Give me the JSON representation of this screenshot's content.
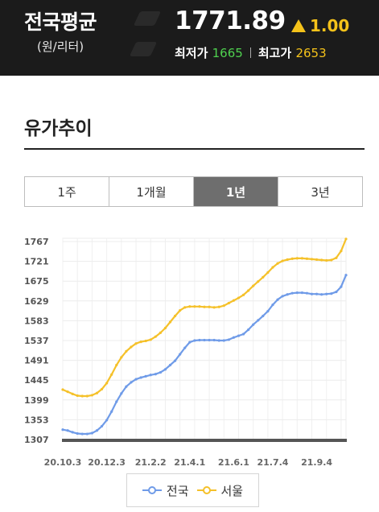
{
  "header": {
    "title": "전국평균",
    "unit": "(원/리터)",
    "price": "1771.89",
    "change": "1.00",
    "low_label": "최저가",
    "low_value": "1665",
    "high_label": "최고가",
    "high_value": "2653"
  },
  "section_title": "유가추이",
  "tabs": [
    {
      "label": "1주",
      "active": false
    },
    {
      "label": "1개월",
      "active": false
    },
    {
      "label": "1년",
      "active": true
    },
    {
      "label": "3년",
      "active": false
    }
  ],
  "colors": {
    "national": "#6f9be8",
    "seoul": "#f5c12a",
    "baseline": "#555555",
    "up": "#f4c21a"
  },
  "chart_data": {
    "type": "line",
    "ylim": [
      1307,
      1767
    ],
    "yticks": [
      1307,
      1353,
      1399,
      1445,
      1491,
      1537,
      1583,
      1629,
      1675,
      1721,
      1767
    ],
    "xticks": [
      {
        "label": "20.10.3",
        "i": 0
      },
      {
        "label": "20.12.3",
        "i": 9
      },
      {
        "label": "21.2.2",
        "i": 18
      },
      {
        "label": "21.4.1",
        "i": 26
      },
      {
        "label": "21.6.1",
        "i": 35
      },
      {
        "label": "21.7.4",
        "i": 43
      },
      {
        "label": "21.9.4",
        "i": 52
      }
    ],
    "series": [
      {
        "name": "전국",
        "values": [
          1330,
          1328,
          1324,
          1321,
          1320,
          1320,
          1322,
          1328,
          1338,
          1352,
          1372,
          1395,
          1414,
          1430,
          1440,
          1447,
          1451,
          1454,
          1457,
          1459,
          1463,
          1470,
          1480,
          1490,
          1505,
          1520,
          1533,
          1537,
          1538,
          1538,
          1538,
          1538,
          1537,
          1537,
          1539,
          1544,
          1548,
          1552,
          1562,
          1574,
          1584,
          1594,
          1605,
          1620,
          1632,
          1640,
          1644,
          1647,
          1648,
          1648,
          1647,
          1645,
          1645,
          1644,
          1645,
          1646,
          1650,
          1662,
          1689
        ]
      },
      {
        "name": "서울",
        "values": [
          1423,
          1418,
          1413,
          1409,
          1408,
          1408,
          1410,
          1415,
          1424,
          1438,
          1458,
          1480,
          1498,
          1512,
          1522,
          1530,
          1534,
          1536,
          1539,
          1546,
          1555,
          1566,
          1580,
          1594,
          1607,
          1614,
          1616,
          1616,
          1616,
          1615,
          1615,
          1614,
          1615,
          1618,
          1624,
          1630,
          1636,
          1643,
          1653,
          1664,
          1674,
          1684,
          1695,
          1707,
          1716,
          1722,
          1725,
          1727,
          1728,
          1728,
          1727,
          1726,
          1725,
          1724,
          1723,
          1724,
          1729,
          1745,
          1773
        ]
      }
    ]
  }
}
